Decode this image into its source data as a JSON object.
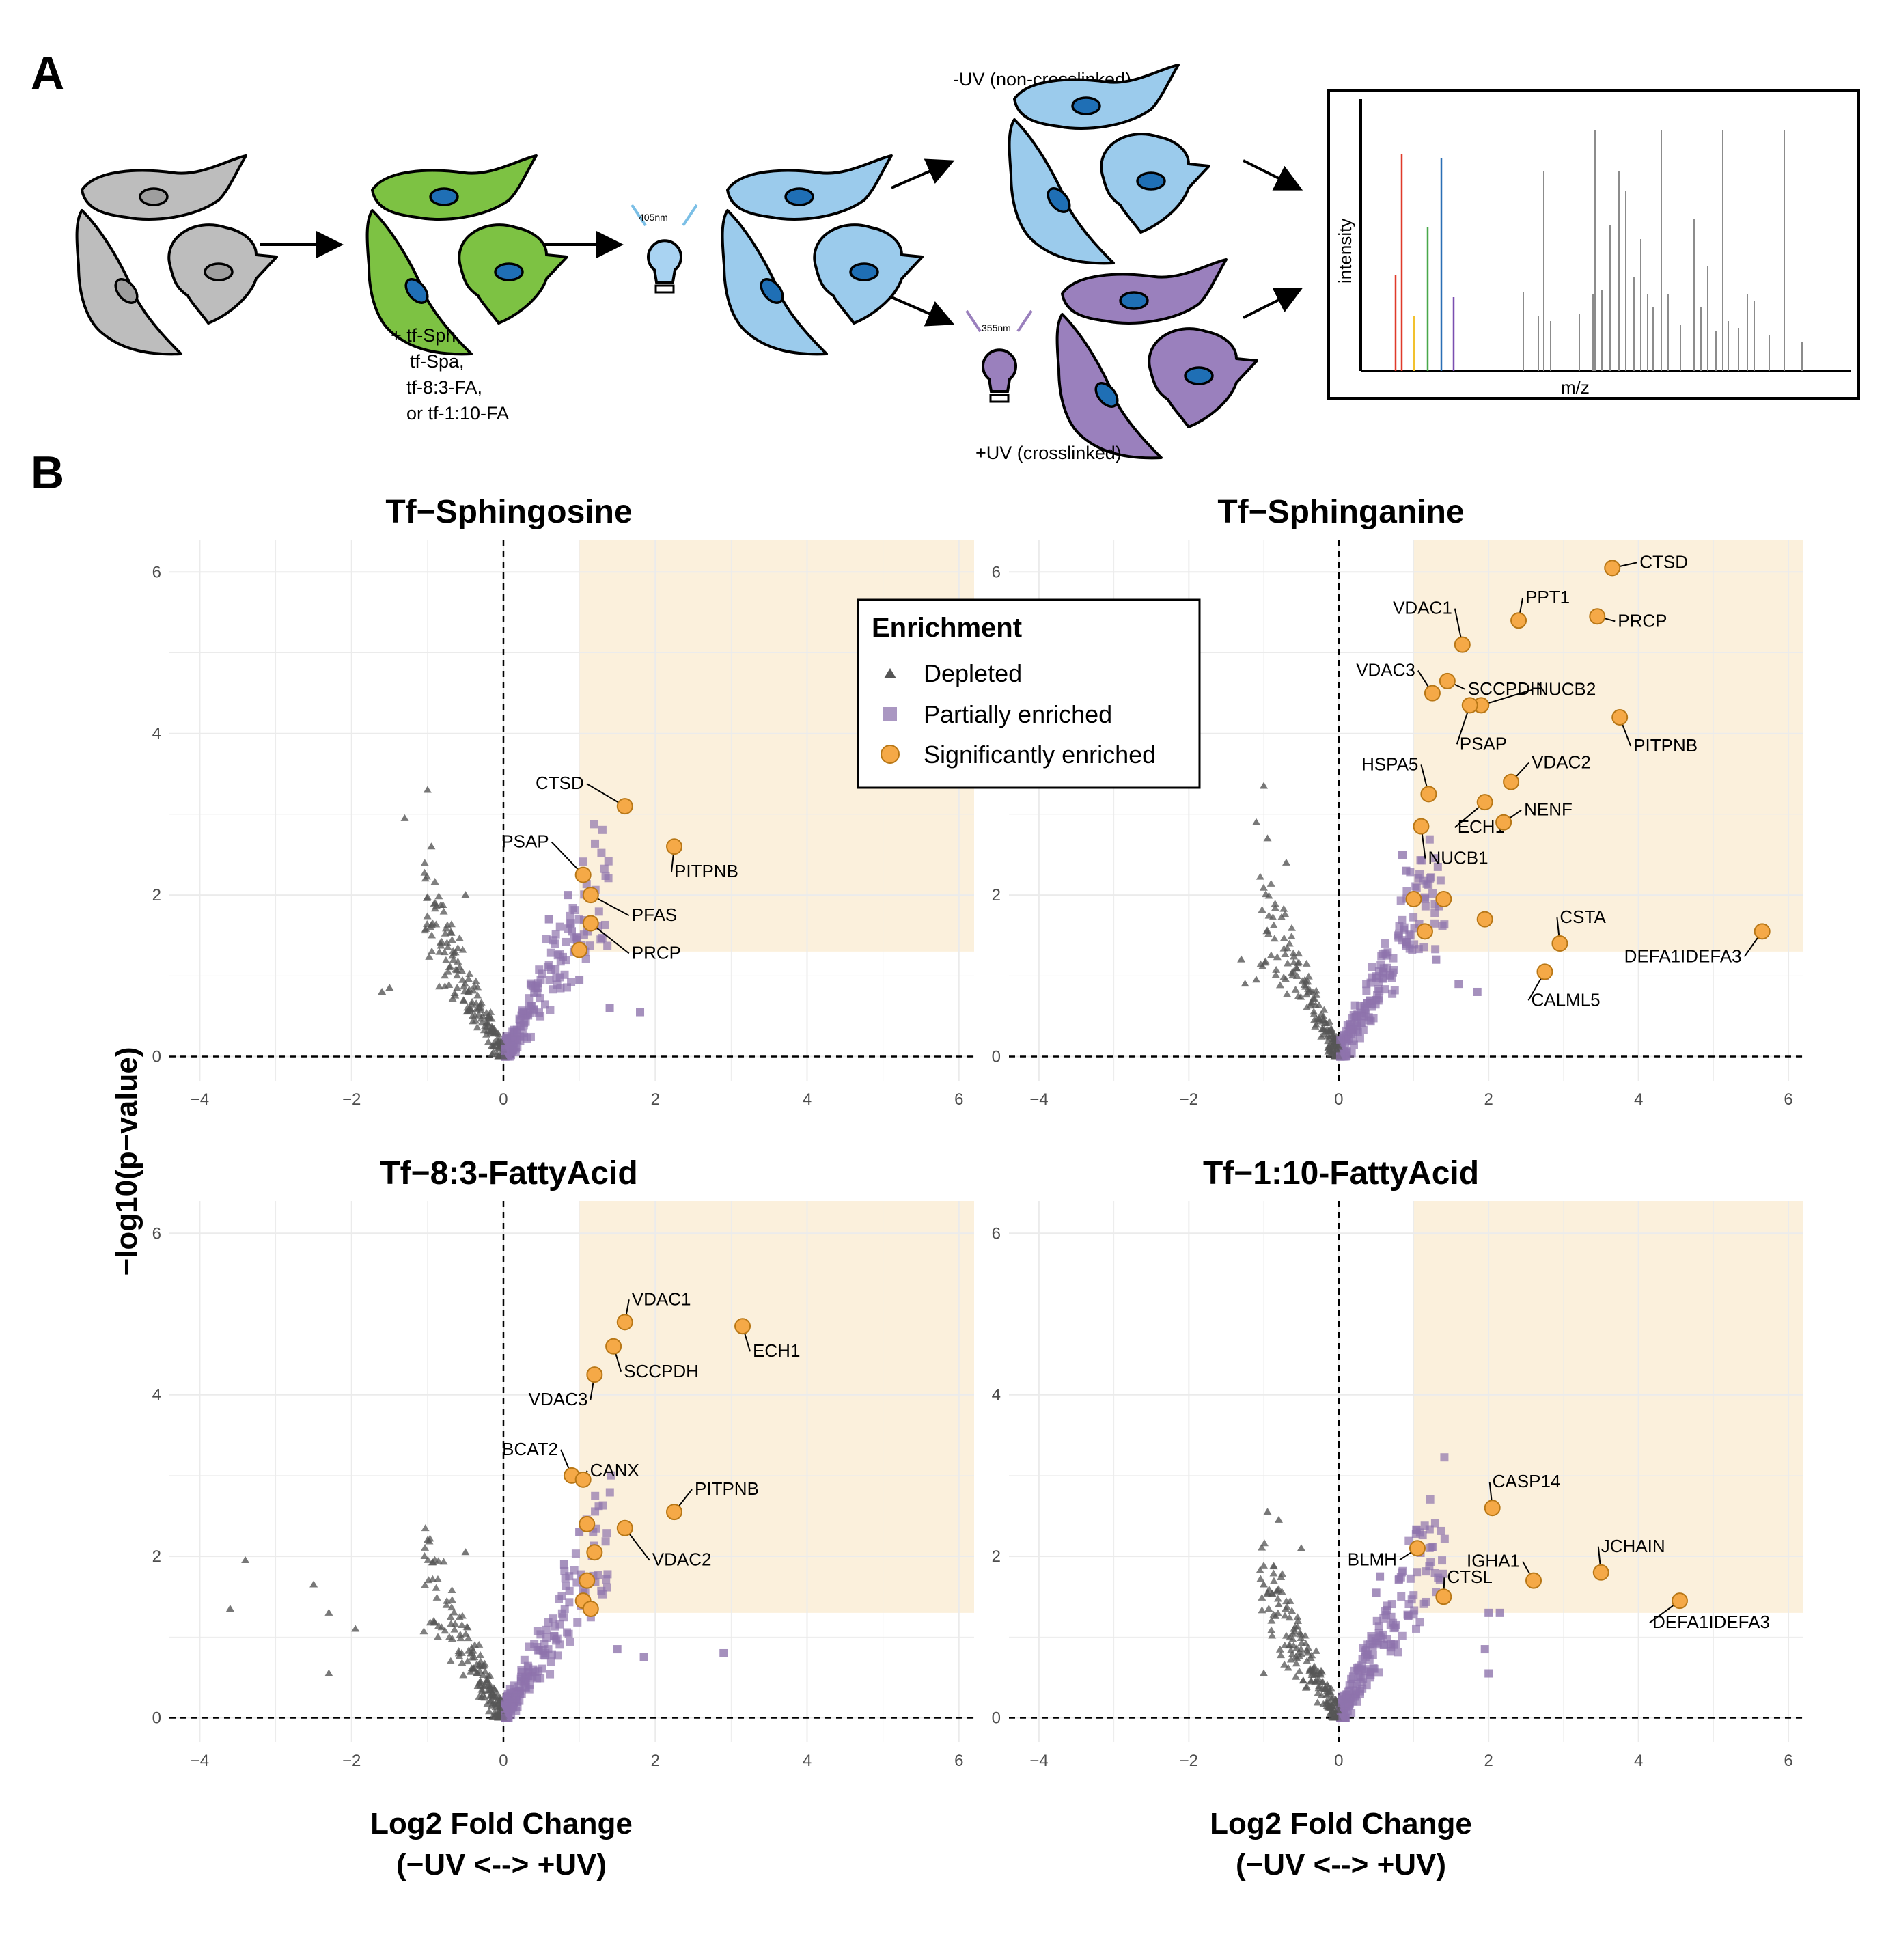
{
  "panel_a": {
    "label": "A",
    "treatment_lines": [
      "+ tf-Sph,",
      "tf-Spa,",
      "tf-8:3-FA,",
      "or tf-1:10-FA"
    ],
    "uv_405": "405nm",
    "uv_355": "355nm",
    "minus_uv": "-UV (non-crosslinked)",
    "plus_uv": "+UV (crosslinked)",
    "spectrum_ylabel": "intensity",
    "spectrum_xlabel": "m/z",
    "colors": {
      "gray_cell": "#bdbdbd",
      "green_cell": "#7dc243",
      "blue_cell": "#9bcbec",
      "purple_cell": "#9a80bd",
      "nucleus": "#1f6fb5"
    }
  },
  "panel_b": {
    "label": "B",
    "y_axis_title": "−log10(p−value)",
    "x_axis_title_line1": "Log2 Fold Change",
    "x_axis_title_line2": "(−UV <--> +UV)",
    "legend": {
      "title": "Enrichment",
      "items": [
        {
          "label": "Depleted",
          "shape": "triangle",
          "color": "#555555"
        },
        {
          "label": "Partially enriched",
          "shape": "square",
          "color": "#8e74ad"
        },
        {
          "label": "Significantly enriched",
          "shape": "circle",
          "color": "#f5a947"
        }
      ]
    }
  },
  "chart_data": [
    {
      "type": "scatter",
      "title": "Tf−Sphingosine",
      "xlabel": "Log2 Fold Change (−UV <--> +UV)",
      "ylabel": "−log10(p−value)",
      "xlim": [
        -4.4,
        6.2
      ],
      "ylim": [
        -0.3,
        6.4
      ],
      "x_ticks": [
        -4,
        -2,
        0,
        2,
        4,
        6
      ],
      "y_ticks": [
        0,
        2,
        4,
        6
      ],
      "highlight_region": {
        "x_min": 1,
        "y_min": 1.3,
        "color": "#fbf0dc"
      },
      "depleted_tip": [
        [
          -1.0,
          3.3
        ],
        [
          -1.3,
          2.95
        ],
        [
          -0.95,
          2.6
        ],
        [
          -0.5,
          2.0
        ],
        [
          -0.9,
          1.9
        ],
        [
          -1.5,
          0.85
        ],
        [
          -1.6,
          0.8
        ]
      ],
      "partial_tip": [
        [
          0.85,
          2.0
        ],
        [
          0.6,
          1.7
        ],
        [
          0.9,
          1.55
        ],
        [
          1.4,
          0.6
        ],
        [
          1.8,
          0.55
        ],
        [
          1.0,
          0.95
        ]
      ],
      "labeled": [
        {
          "label": "CTSD",
          "x": 1.6,
          "y": 3.1
        },
        {
          "label": "PITPNB",
          "x": 2.25,
          "y": 2.6
        },
        {
          "label": "PSAP",
          "x": 1.05,
          "y": 2.25
        },
        {
          "label": "PFAS",
          "x": 1.15,
          "y": 2.0
        },
        {
          "label": "PRCP",
          "x": 1.15,
          "y": 1.65
        }
      ],
      "unlabeled_sig": [
        [
          1.0,
          1.32
        ]
      ]
    },
    {
      "type": "scatter",
      "title": "Tf−Sphinganine",
      "xlabel": "Log2 Fold Change (−UV <--> +UV)",
      "ylabel": "−log10(p−value)",
      "xlim": [
        -4.4,
        6.2
      ],
      "ylim": [
        -0.3,
        6.4
      ],
      "x_ticks": [
        -4,
        -2,
        0,
        2,
        4,
        6
      ],
      "y_ticks": [
        0,
        2,
        4,
        6
      ],
      "highlight_region": {
        "x_min": 1,
        "y_min": 1.3,
        "color": "#fbf0dc"
      },
      "depleted_tip": [
        [
          -1.0,
          3.35
        ],
        [
          -1.1,
          2.9
        ],
        [
          -0.95,
          2.7
        ],
        [
          -0.7,
          2.4
        ],
        [
          -1.3,
          1.2
        ],
        [
          -1.25,
          0.9
        ],
        [
          -1.1,
          0.95
        ]
      ],
      "partial_tip": [
        [
          0.85,
          2.5
        ],
        [
          0.9,
          2.3
        ],
        [
          1.3,
          1.2
        ],
        [
          1.85,
          0.8
        ],
        [
          2.75,
          1.0
        ],
        [
          1.6,
          0.9
        ]
      ],
      "labeled": [
        {
          "label": "CTSD",
          "x": 3.65,
          "y": 6.05
        },
        {
          "label": "PPT1",
          "x": 2.4,
          "y": 5.4
        },
        {
          "label": "PRCP",
          "x": 3.45,
          "y": 5.45
        },
        {
          "label": "VDAC1",
          "x": 1.65,
          "y": 5.1
        },
        {
          "label": "SCCPDH",
          "x": 1.45,
          "y": 4.65
        },
        {
          "label": "VDAC3",
          "x": 1.25,
          "y": 4.5
        },
        {
          "label": "NUCB2",
          "x": 1.9,
          "y": 4.35
        },
        {
          "label": "PSAP",
          "x": 1.75,
          "y": 4.35
        },
        {
          "label": "PITPNB",
          "x": 3.75,
          "y": 4.2
        },
        {
          "label": "VDAC2",
          "x": 2.3,
          "y": 3.4
        },
        {
          "label": "HSPA5",
          "x": 1.2,
          "y": 3.25
        },
        {
          "label": "ECH1",
          "x": 1.95,
          "y": 3.15
        },
        {
          "label": "NENF",
          "x": 2.2,
          "y": 2.9
        },
        {
          "label": "NUCB1",
          "x": 1.1,
          "y": 2.85
        },
        {
          "label": "CSTA",
          "x": 2.95,
          "y": 1.4
        },
        {
          "label": "DEFA1IDEFA3",
          "x": 5.65,
          "y": 1.55
        },
        {
          "label": "CALML5",
          "x": 2.75,
          "y": 1.05
        }
      ],
      "unlabeled_sig": [
        [
          1.0,
          1.95
        ],
        [
          1.4,
          1.95
        ],
        [
          1.95,
          1.7
        ],
        [
          1.15,
          1.55
        ]
      ]
    },
    {
      "type": "scatter",
      "title": "Tf−8:3-FattyAcid",
      "xlabel": "Log2 Fold Change (−UV <--> +UV)",
      "ylabel": "−log10(p−value)",
      "xlim": [
        -4.4,
        6.2
      ],
      "ylim": [
        -0.3,
        6.4
      ],
      "x_ticks": [
        -4,
        -2,
        0,
        2,
        4,
        6
      ],
      "y_ticks": [
        0,
        2,
        4,
        6
      ],
      "highlight_region": {
        "x_min": 1,
        "y_min": 1.3,
        "color": "#fbf0dc"
      },
      "depleted_tip": [
        [
          -3.4,
          1.95
        ],
        [
          -3.6,
          1.35
        ],
        [
          -2.5,
          1.65
        ],
        [
          -2.3,
          1.3
        ],
        [
          -1.95,
          1.1
        ],
        [
          -2.3,
          0.55
        ],
        [
          -1.0,
          2.2
        ],
        [
          -0.5,
          2.05
        ]
      ],
      "partial_tip": [
        [
          0.9,
          3.0
        ],
        [
          1.0,
          2.3
        ],
        [
          0.8,
          1.9
        ],
        [
          2.9,
          0.8
        ],
        [
          1.85,
          0.75
        ],
        [
          1.5,
          0.85
        ]
      ],
      "labeled": [
        {
          "label": "VDAC1",
          "x": 1.6,
          "y": 4.9
        },
        {
          "label": "ECH1",
          "x": 3.15,
          "y": 4.85
        },
        {
          "label": "SCCPDH",
          "x": 1.45,
          "y": 4.6
        },
        {
          "label": "VDAC3",
          "x": 1.2,
          "y": 4.25
        },
        {
          "label": "BCAT2",
          "x": 0.9,
          "y": 3.0
        },
        {
          "label": "CANX",
          "x": 1.05,
          "y": 2.95
        },
        {
          "label": "PITPNB",
          "x": 2.25,
          "y": 2.55
        },
        {
          "label": "VDAC2",
          "x": 1.6,
          "y": 2.35
        }
      ],
      "unlabeled_sig": [
        [
          1.1,
          2.4
        ],
        [
          1.2,
          2.05
        ],
        [
          1.1,
          1.7
        ],
        [
          1.05,
          1.45
        ],
        [
          1.15,
          1.35
        ]
      ]
    },
    {
      "type": "scatter",
      "title": "Tf−1:10-FattyAcid",
      "xlabel": "Log2 Fold Change (−UV <--> +UV)",
      "ylabel": "−log10(p−value)",
      "xlim": [
        -4.4,
        6.2
      ],
      "ylim": [
        -0.3,
        6.4
      ],
      "x_ticks": [
        -4,
        -2,
        0,
        2,
        4,
        6
      ],
      "y_ticks": [
        0,
        2,
        4,
        6
      ],
      "highlight_region": {
        "x_min": 1,
        "y_min": 1.3,
        "color": "#fbf0dc"
      },
      "depleted_tip": [
        [
          -0.95,
          2.55
        ],
        [
          -0.8,
          2.45
        ],
        [
          -0.5,
          2.1
        ],
        [
          -1.0,
          1.65
        ],
        [
          -0.8,
          1.4
        ],
        [
          -1.0,
          0.55
        ]
      ],
      "partial_tip": [
        [
          0.55,
          1.75
        ],
        [
          0.5,
          1.55
        ],
        [
          2.0,
          1.3
        ],
        [
          2.15,
          1.3
        ],
        [
          1.95,
          0.85
        ],
        [
          2.0,
          0.55
        ]
      ],
      "labeled": [
        {
          "label": "CASP14",
          "x": 2.05,
          "y": 2.6
        },
        {
          "label": "JCHAIN",
          "x": 3.5,
          "y": 1.8
        },
        {
          "label": "IGHA1",
          "x": 2.6,
          "y": 1.7
        },
        {
          "label": "BLMH",
          "x": 1.05,
          "y": 2.1
        },
        {
          "label": "CTSL",
          "x": 1.4,
          "y": 1.5
        },
        {
          "label": "DEFA1IDEFA3",
          "x": 4.55,
          "y": 1.45
        }
      ],
      "unlabeled_sig": []
    }
  ]
}
